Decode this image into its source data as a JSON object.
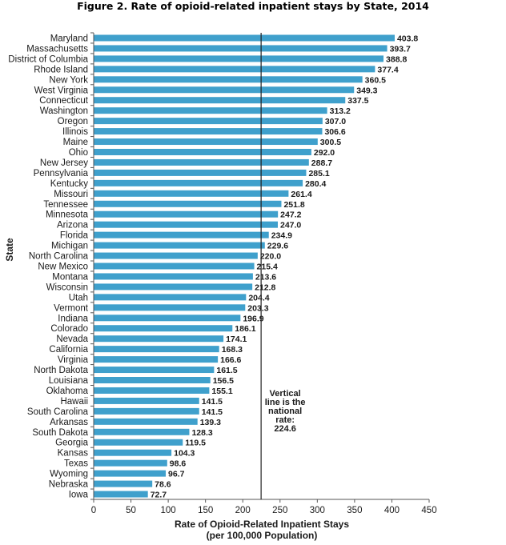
{
  "chart_data": {
    "type": "bar",
    "orientation": "horizontal",
    "title": "Figure 2. Rate of opioid-related inpatient stays by State, 2014",
    "xlabel": [
      "Rate of Opioid-Related Inpatient Stays",
      "(per 100,000 Population)"
    ],
    "ylabel": "State",
    "xlim": [
      0,
      450
    ],
    "xticks": [
      0,
      50,
      100,
      150,
      200,
      250,
      300,
      350,
      400,
      450
    ],
    "bar_color": "#3fa0cc",
    "categories": [
      "Maryland",
      "Massachusetts",
      "District of Columbia",
      "Rhode Island",
      "New York",
      "West Virginia",
      "Connecticut",
      "Washington",
      "Oregon",
      "Illinois",
      "Maine",
      "Ohio",
      "New Jersey",
      "Pennsylvania",
      "Kentucky",
      "Missouri",
      "Tennessee",
      "Minnesota",
      "Arizona",
      "Florida",
      "Michigan",
      "North Carolina",
      "New Mexico",
      "Montana",
      "Wisconsin",
      "Utah",
      "Vermont",
      "Indiana",
      "Colorado",
      "Nevada",
      "California",
      "Virginia",
      "North Dakota",
      "Louisiana",
      "Oklahoma",
      "Hawaii",
      "South Carolina",
      "Arkansas",
      "South Dakota",
      "Georgia",
      "Kansas",
      "Texas",
      "Wyoming",
      "Nebraska",
      "Iowa"
    ],
    "values": [
      403.8,
      393.7,
      388.8,
      377.4,
      360.5,
      349.3,
      337.5,
      313.2,
      307.0,
      306.6,
      300.5,
      292.0,
      288.7,
      285.1,
      280.4,
      261.4,
      251.8,
      247.2,
      247.0,
      234.9,
      229.6,
      220.0,
      215.4,
      213.6,
      212.8,
      204.4,
      203.3,
      196.9,
      186.1,
      174.1,
      168.3,
      166.6,
      161.5,
      156.5,
      155.1,
      141.5,
      141.5,
      139.3,
      128.3,
      119.5,
      104.3,
      98.6,
      96.7,
      78.6,
      72.7
    ],
    "value_labels": [
      "403.8",
      "393.7",
      "388.8",
      "377.4",
      "360.5",
      "349.3",
      "337.5",
      "313.2",
      "307.0",
      "306.6",
      "300.5",
      "292.0",
      "288.7",
      "285.1",
      "280.4",
      "261.4",
      "251.8",
      "247.2",
      "247.0",
      "234.9",
      "229.6",
      "220.0",
      "215.4",
      "213.6",
      "212.8",
      "204.4",
      "203.3",
      "196.9",
      "186.1",
      "174.1",
      "168.3",
      "166.6",
      "161.5",
      "156.5",
      "155.1",
      "141.5",
      "141.5",
      "139.3",
      "128.3",
      "119.5",
      "104.3",
      "98.6",
      "96.7",
      "78.6",
      "72.7"
    ],
    "reference_line": {
      "value": 224.6,
      "annotation": [
        "Vertical",
        "line is the",
        "national",
        "rate:",
        "224.6"
      ]
    }
  }
}
